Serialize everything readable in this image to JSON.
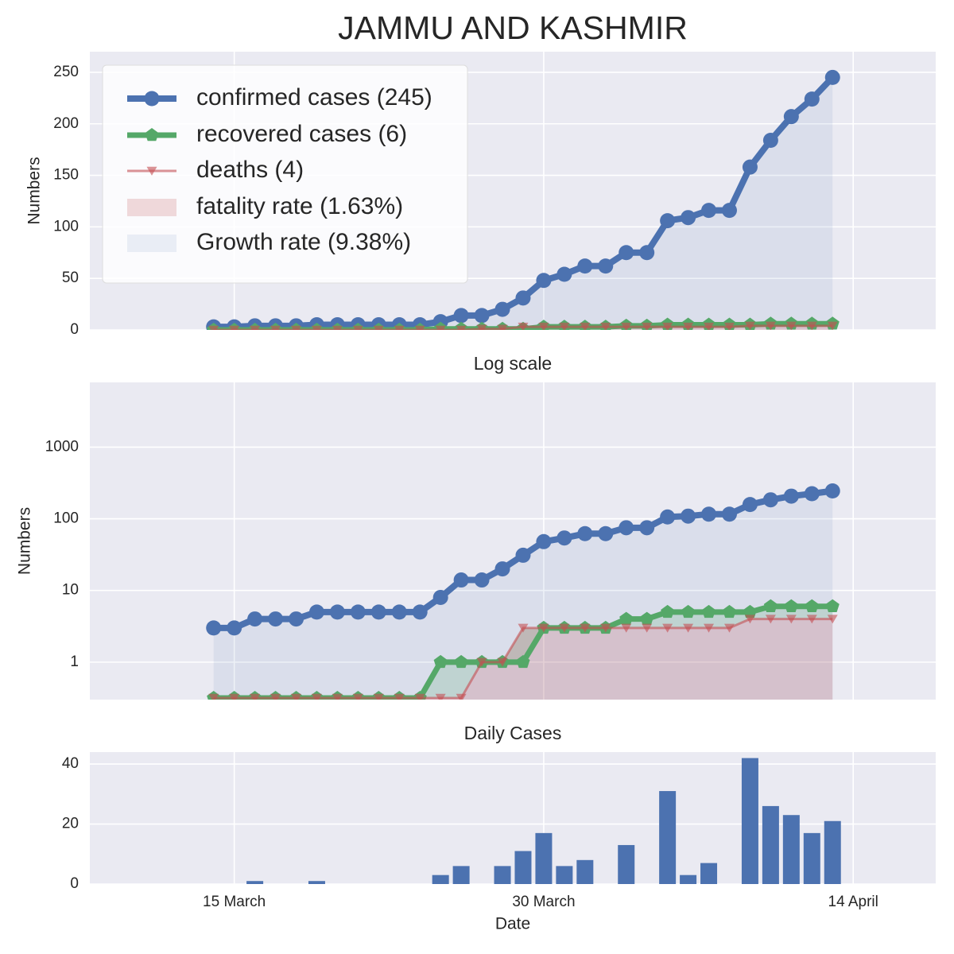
{
  "title": "JAMMU AND KASHMIR",
  "chart_data": [
    {
      "type": "line",
      "ylabel": "Numbers",
      "ylim": [
        0,
        270
      ],
      "yticks": [
        0,
        50,
        100,
        150,
        200,
        250
      ],
      "grid": true,
      "legend": "upper left",
      "x": [
        "03-14",
        "03-15",
        "03-16",
        "03-17",
        "03-18",
        "03-19",
        "03-20",
        "03-21",
        "03-22",
        "03-23",
        "03-24",
        "03-25",
        "03-26",
        "03-27",
        "03-28",
        "03-29",
        "03-30",
        "03-31",
        "04-01",
        "04-02",
        "04-03",
        "04-04",
        "04-05",
        "04-06",
        "04-07",
        "04-08",
        "04-09",
        "04-10",
        "04-11",
        "04-12",
        "04-13"
      ],
      "series": [
        {
          "name": "confirmed cases (245)",
          "color": "#4c72b0",
          "marker": "circle",
          "values": [
            3,
            3,
            4,
            4,
            4,
            5,
            5,
            5,
            5,
            5,
            5,
            8,
            14,
            14,
            20,
            31,
            48,
            54,
            62,
            62,
            75,
            75,
            106,
            109,
            116,
            116,
            158,
            184,
            207,
            224,
            245
          ]
        },
        {
          "name": "recovered cases (6)",
          "color": "#55a868",
          "marker": "pentagon",
          "values": [
            0,
            0,
            0,
            0,
            0,
            0,
            0,
            0,
            0,
            0,
            0,
            1,
            1,
            1,
            1,
            1,
            3,
            3,
            3,
            3,
            4,
            4,
            5,
            5,
            5,
            5,
            5,
            6,
            6,
            6,
            6
          ]
        },
        {
          "name": "deaths (4)",
          "color": "#c44e52",
          "marker": "triangle-down",
          "values": [
            0,
            0,
            0,
            0,
            0,
            0,
            0,
            0,
            0,
            0,
            0,
            0,
            0,
            1,
            1,
            3,
            3,
            3,
            3,
            3,
            3,
            3,
            3,
            3,
            3,
            3,
            4,
            4,
            4,
            4,
            4
          ]
        }
      ],
      "fills": [
        {
          "name": "fatality rate (1.63%)",
          "color": "#c44e52"
        },
        {
          "name": "Growth rate (9.38%)",
          "color": "#4c72b0"
        }
      ]
    },
    {
      "type": "line",
      "title": "Log scale",
      "ylabel": "Numbers",
      "yscale": "log",
      "ylim": [
        0.3,
        8000
      ],
      "yticks": [
        1,
        10,
        100,
        1000
      ],
      "grid": true,
      "x": [
        "03-14",
        "03-15",
        "03-16",
        "03-17",
        "03-18",
        "03-19",
        "03-20",
        "03-21",
        "03-22",
        "03-23",
        "03-24",
        "03-25",
        "03-26",
        "03-27",
        "03-28",
        "03-29",
        "03-30",
        "03-31",
        "04-01",
        "04-02",
        "04-03",
        "04-04",
        "04-05",
        "04-06",
        "04-07",
        "04-08",
        "04-09",
        "04-10",
        "04-11",
        "04-12",
        "04-13"
      ],
      "series": [
        {
          "color": "#4c72b0",
          "marker": "circle",
          "values": [
            3,
            3,
            4,
            4,
            4,
            5,
            5,
            5,
            5,
            5,
            5,
            8,
            14,
            14,
            20,
            31,
            48,
            54,
            62,
            62,
            75,
            75,
            106,
            109,
            116,
            116,
            158,
            184,
            207,
            224,
            245
          ]
        },
        {
          "color": "#55a868",
          "marker": "pentagon",
          "values": [
            0,
            0,
            0,
            0,
            0,
            0,
            0,
            0,
            0,
            0,
            0,
            1,
            1,
            1,
            1,
            1,
            3,
            3,
            3,
            3,
            4,
            4,
            5,
            5,
            5,
            5,
            5,
            6,
            6,
            6,
            6
          ]
        },
        {
          "color": "#c44e52",
          "marker": "triangle-down",
          "values": [
            0,
            0,
            0,
            0,
            0,
            0,
            0,
            0,
            0,
            0,
            0,
            0,
            0,
            1,
            1,
            3,
            3,
            3,
            3,
            3,
            3,
            3,
            3,
            3,
            3,
            3,
            4,
            4,
            4,
            4,
            4
          ]
        }
      ]
    },
    {
      "type": "bar",
      "title": "Daily Cases",
      "xlabel": "Date",
      "color": "#4c72b0",
      "ylim": [
        0,
        44
      ],
      "yticks": [
        0,
        20,
        40
      ],
      "grid": true,
      "x": [
        "03-14",
        "03-15",
        "03-16",
        "03-17",
        "03-18",
        "03-19",
        "03-20",
        "03-21",
        "03-22",
        "03-23",
        "03-24",
        "03-25",
        "03-26",
        "03-27",
        "03-28",
        "03-29",
        "03-30",
        "03-31",
        "04-01",
        "04-02",
        "04-03",
        "04-04",
        "04-05",
        "04-06",
        "04-07",
        "04-08",
        "04-09",
        "04-10",
        "04-11",
        "04-12",
        "04-13"
      ],
      "values": [
        0,
        0,
        1,
        0,
        0,
        1,
        0,
        0,
        0,
        0,
        0,
        3,
        6,
        0,
        6,
        11,
        17,
        6,
        8,
        0,
        13,
        0,
        31,
        3,
        7,
        0,
        42,
        26,
        23,
        17,
        21
      ],
      "xlim": [
        "03-08",
        "04-18"
      ],
      "xticks": [
        {
          "value": "03-15",
          "label": "15 March"
        },
        {
          "value": "03-30",
          "label": "30 March"
        },
        {
          "value": "04-14",
          "label": "14 April"
        }
      ]
    }
  ]
}
